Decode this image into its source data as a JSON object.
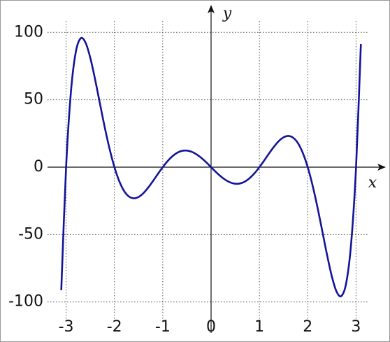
{
  "chart_data": {
    "type": "line",
    "x_label": "x",
    "y_label": "y",
    "x": [
      -3.1,
      -3.0,
      -2.9,
      -2.8,
      -2.7,
      -2.6,
      -2.5,
      -2.4,
      -2.3,
      -2.2,
      -2.1,
      -2.0,
      -1.9,
      -1.8,
      -1.7,
      -1.6,
      -1.5,
      -1.4,
      -1.3,
      -1.2,
      -1.1,
      -1.0,
      -0.9,
      -0.8,
      -0.7,
      -0.6,
      -0.5,
      -0.4,
      -0.3,
      -0.2,
      -0.1,
      0,
      0.1,
      0.2,
      0.3,
      0.4,
      0.5,
      0.6,
      0.7,
      0.8,
      0.9,
      1.0,
      1.1,
      1.2,
      1.3,
      1.4,
      1.5,
      1.6,
      1.7,
      1.8,
      1.9,
      2.0,
      2.1,
      2.2,
      2.3,
      2.4,
      2.5,
      2.6,
      2.7,
      2.8,
      2.9,
      3.0,
      3.1
    ],
    "series": [
      {
        "color": "#14149a",
        "values": [
          -91.3,
          0,
          55.9,
          85.3,
          95.5,
          92.6,
          81.2,
          65.1,
          47.2,
          29.5,
          13.5,
          0,
          -10.4,
          -17.7,
          -21.8,
          -23.1,
          -22.1,
          -19.3,
          -15.1,
          -10.2,
          -5.0,
          0,
          4.5,
          8.1,
          10.7,
          12.1,
          12.3,
          11.4,
          9.5,
          6.8,
          3.6,
          0,
          -3.6,
          -6.8,
          -9.5,
          -11.4,
          -12.3,
          -12.1,
          -10.7,
          -8.1,
          -4.5,
          0,
          5.0,
          10.2,
          15.1,
          19.3,
          22.1,
          23.1,
          21.8,
          17.7,
          10.4,
          0,
          -13.5,
          -29.5,
          -47.2,
          -65.1,
          -81.2,
          -92.6,
          -95.5,
          -85.3,
          -55.9,
          0,
          91.3
        ]
      }
    ],
    "xlim": [
      -3.5,
      3.5
    ],
    "xticks": [
      -3,
      -2,
      -1,
      0,
      1,
      2,
      3
    ],
    "ylim": [
      -110,
      110
    ],
    "yticks": [
      -100,
      -50,
      0,
      50,
      100
    ],
    "grid": true
  }
}
